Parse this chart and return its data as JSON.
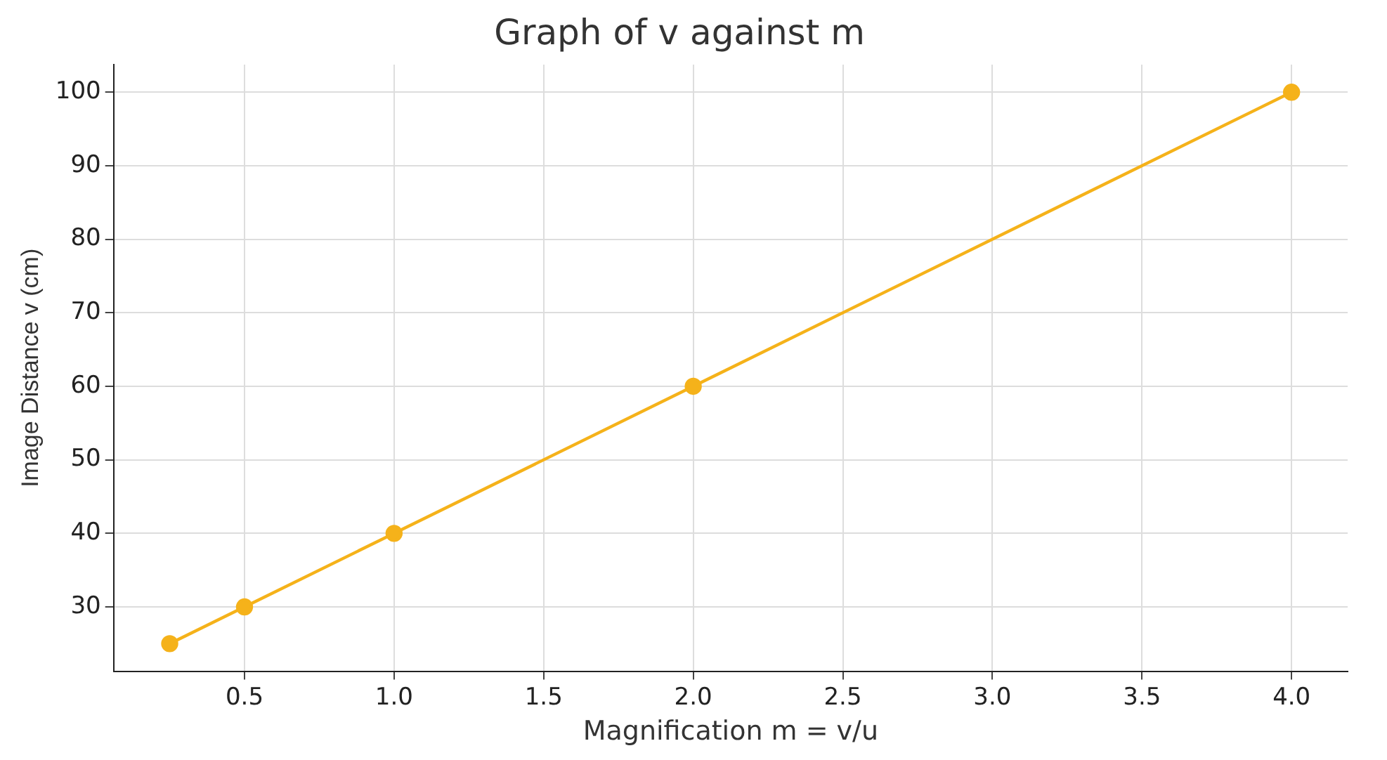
{
  "chart_data": {
    "type": "line",
    "title": "Graph of v against m",
    "xlabel": "Magnification m = v/u",
    "ylabel": "Image Distance v (cm)",
    "x": [
      0.25,
      0.5,
      1.0,
      2.0,
      4.0
    ],
    "series": [
      {
        "color": "#f5b21a",
        "values": [
          25,
          30,
          40,
          60,
          100
        ]
      }
    ],
    "xlim": [
      0.0625,
      4.1875
    ],
    "xticks": [
      {
        "value": 0.5,
        "label": "0.5"
      },
      {
        "value": 1,
        "label": "1.0"
      },
      {
        "value": 1.5,
        "label": "1.5"
      },
      {
        "value": 2,
        "label": "2.0"
      },
      {
        "value": 2.5,
        "label": "2.5"
      },
      {
        "value": 3,
        "label": "3.0"
      },
      {
        "value": 3.5,
        "label": "3.5"
      },
      {
        "value": 4,
        "label": "4.0"
      }
    ],
    "ylim": [
      21.25,
      103.75
    ],
    "yticks": [
      30,
      40,
      50,
      60,
      70,
      80,
      90,
      100
    ],
    "grid": true,
    "marker": "circle",
    "line_style": "solid",
    "legend": false
  }
}
